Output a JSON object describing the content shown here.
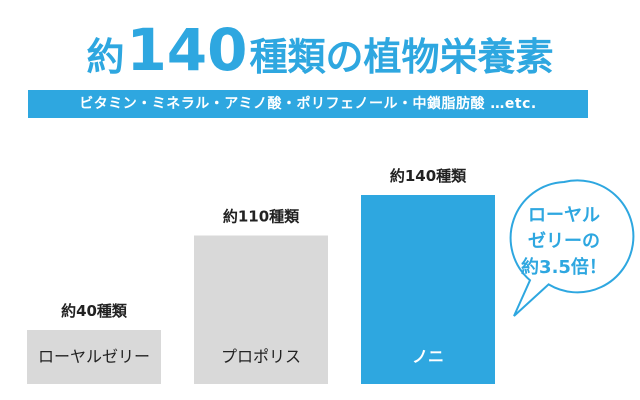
{
  "headline": {
    "prefix": "約",
    "number": "140",
    "suffix": "種類の植物栄養素"
  },
  "subheadline": "ビタミン・ミネラル・アミノ酸・ポリフェノール・中鎖脂肪酸 …etc.",
  "callout": {
    "lines": [
      "ローヤル",
      "ゼリーの",
      "約3.5倍！"
    ]
  },
  "colors": {
    "accent": "#2ea7e0",
    "bar_gray": "#d9d9d9",
    "text": "#222222"
  },
  "chart_data": {
    "type": "bar",
    "categories": [
      "ローヤルゼリー",
      "プロポリス",
      "ノニ"
    ],
    "values": [
      40,
      110,
      140
    ],
    "value_labels": [
      "約40種類",
      "約110種類",
      "約140種類"
    ],
    "highlight_index": 2,
    "ylim": [
      0,
      140
    ],
    "grid": false
  }
}
